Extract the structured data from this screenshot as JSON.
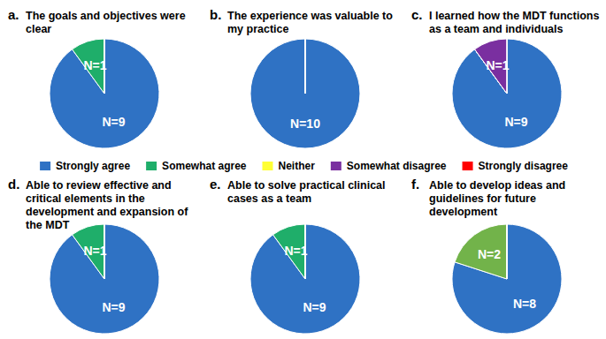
{
  "chart_data": [
    {
      "type": "pie",
      "title": "a. The goals and objectives were clear",
      "categories": [
        "Strongly agree",
        "Somewhat agree",
        "Neither",
        "Somewhat disagree",
        "Strongly disagree"
      ],
      "values": [
        9,
        1,
        0,
        0,
        0
      ],
      "value_labels": [
        "N=9",
        "N=1",
        null,
        null,
        null
      ],
      "colors": [
        "#2f72c4",
        "#1fae6a",
        "#ffff33",
        "#7a2fa0",
        "#ff0000"
      ],
      "data_labels": true,
      "legend": "center"
    },
    {
      "type": "pie",
      "title": "b. The experience was valuable to my practice",
      "categories": [
        "Strongly agree",
        "Somewhat agree",
        "Neither",
        "Somewhat disagree",
        "Strongly disagree"
      ],
      "values": [
        10,
        0,
        0,
        0,
        0
      ],
      "value_labels": [
        "N=10",
        null,
        null,
        null,
        null
      ],
      "colors": [
        "#2f72c4",
        "#1fae6a",
        "#ffff33",
        "#7a2fa0",
        "#ff0000"
      ],
      "data_labels": true
    },
    {
      "type": "pie",
      "title": "c. I learned how the MDT functions as a team and individuals",
      "categories": [
        "Strongly agree",
        "Somewhat agree",
        "Neither",
        "Somewhat disagree",
        "Strongly disagree"
      ],
      "values": [
        9,
        0,
        0,
        1,
        0
      ],
      "value_labels": [
        "N=9",
        null,
        null,
        "N=1",
        null
      ],
      "colors": [
        "#2f72c4",
        "#1fae6a",
        "#ffff33",
        "#7a2fa0",
        "#ff0000"
      ],
      "data_labels": true
    },
    {
      "type": "pie",
      "title": "d. Able to review effective and critical elements in the development and expansion of the MDT",
      "categories": [
        "Strongly agree",
        "Somewhat agree",
        "Neither",
        "Somewhat disagree",
        "Strongly disagree"
      ],
      "values": [
        9,
        1,
        0,
        0,
        0
      ],
      "value_labels": [
        "N=9",
        "N=1",
        null,
        null,
        null
      ],
      "colors": [
        "#2f72c4",
        "#1fae6a",
        "#ffff33",
        "#7a2fa0",
        "#ff0000"
      ],
      "data_labels": true
    },
    {
      "type": "pie",
      "title": "e. Able to solve practical clinical cases as a team",
      "categories": [
        "Strongly agree",
        "Somewhat agree",
        "Neither",
        "Somewhat disagree",
        "Strongly disagree"
      ],
      "values": [
        9,
        1,
        0,
        0,
        0
      ],
      "value_labels": [
        "N=9",
        "N=1",
        null,
        null,
        null
      ],
      "colors": [
        "#2f72c4",
        "#1fae6a",
        "#ffff33",
        "#7a2fa0",
        "#ff0000"
      ],
      "data_labels": true
    },
    {
      "type": "pie",
      "title": "f. Able to develop ideas and guidelines for future development",
      "categories": [
        "Strongly agree",
        "Somewhat agree",
        "Neither",
        "Somewhat disagree",
        "Strongly disagree"
      ],
      "values": [
        8,
        2,
        0,
        0,
        0
      ],
      "value_labels": [
        "N=8",
        "N=2",
        null,
        null,
        null
      ],
      "colors": [
        "#2f72c4",
        "#72b34a",
        "#ffff33",
        "#7a2fa0",
        "#ff0000"
      ],
      "data_labels": true
    }
  ]
}
